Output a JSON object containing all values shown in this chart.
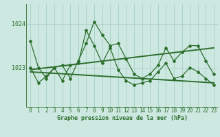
{
  "x": [
    0,
    1,
    2,
    3,
    4,
    5,
    6,
    7,
    8,
    9,
    10,
    11,
    12,
    13,
    14,
    15,
    16,
    17,
    18,
    19,
    20,
    21,
    22,
    23
  ],
  "line1": [
    1023.6,
    1023.0,
    1022.75,
    1023.0,
    1023.05,
    1022.75,
    1023.15,
    1023.55,
    1024.05,
    1023.75,
    1023.5,
    1023.55,
    1023.2,
    1022.85,
    1022.75,
    1022.85,
    1023.05,
    1023.45,
    1023.15,
    1023.35,
    1023.5,
    1023.5,
    1023.15,
    1022.85
  ],
  "line2": [
    1023.0,
    1022.65,
    1022.8,
    1023.0,
    1022.7,
    1023.05,
    1023.1,
    1023.85,
    1023.5,
    1023.1,
    1023.45,
    1022.95,
    1022.7,
    1022.6,
    1022.65,
    1022.7,
    1022.9,
    1023.1,
    1022.75,
    1022.8,
    1023.0,
    1022.9,
    1022.75,
    1022.6
  ],
  "trend1_x": [
    0,
    23
  ],
  "trend1_y": [
    1022.95,
    1023.45
  ],
  "trend2_x": [
    0,
    23
  ],
  "trend2_y": [
    1022.9,
    1022.65
  ],
  "background_color": "#cce8e0",
  "line_color": "#2d6e2d",
  "grid_color": "#a8cfc4",
  "xlabel_label": "Graphe pression niveau de la mer (hPa)",
  "ylim_min": 1022.1,
  "ylim_max": 1024.45,
  "xticks": [
    0,
    1,
    2,
    3,
    4,
    5,
    6,
    7,
    8,
    9,
    10,
    11,
    12,
    13,
    14,
    15,
    16,
    17,
    18,
    19,
    20,
    21,
    22,
    23
  ],
  "yticks": [
    1023,
    1024
  ],
  "tick_fontsize": 5.5,
  "xlabel_fontsize": 6.0
}
